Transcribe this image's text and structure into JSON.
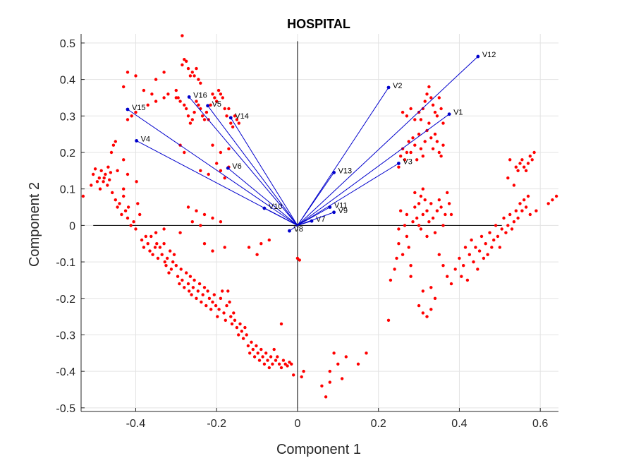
{
  "chart_data": {
    "type": "scatter",
    "title": "HOSPITAL",
    "xlabel": "Component 1",
    "ylabel": "Component 2",
    "xlim": [
      -0.535,
      0.645
    ],
    "ylim": [
      -0.51,
      0.525
    ],
    "xticks": [
      -0.4,
      -0.2,
      0,
      0.2,
      0.4,
      0.6
    ],
    "xtick_labels": [
      "-0.4",
      "-0.2",
      "0",
      "0.2",
      "0.4",
      "0.6"
    ],
    "yticks": [
      -0.5,
      -0.4,
      -0.3,
      -0.2,
      -0.1,
      0,
      0.1,
      0.2,
      0.3,
      0.4,
      0.5
    ],
    "ytick_labels": [
      "-0.5",
      "-0.4",
      "-0.3",
      "-0.2",
      "-0.1",
      "0",
      "0.1",
      "0.2",
      "0.3",
      "0.4",
      "0.5"
    ],
    "grid": true,
    "colors": {
      "points": "#ff0000",
      "vectors": "#0000cc",
      "axes_lines": "#000000",
      "grid": "#e3e3e3",
      "box": "#262626"
    },
    "vectors": [
      {
        "name": "V1",
        "x": 0.375,
        "y": 0.305
      },
      {
        "name": "V2",
        "x": 0.225,
        "y": 0.378
      },
      {
        "name": "V3",
        "x": 0.25,
        "y": 0.17
      },
      {
        "name": "V4",
        "x": -0.398,
        "y": 0.232
      },
      {
        "name": "V5",
        "x": -0.222,
        "y": 0.328
      },
      {
        "name": "V6",
        "x": -0.172,
        "y": 0.157
      },
      {
        "name": "V7",
        "x": 0.035,
        "y": 0.012
      },
      {
        "name": "V8",
        "x": -0.02,
        "y": -0.015
      },
      {
        "name": "V9",
        "x": 0.09,
        "y": 0.036
      },
      {
        "name": "V10",
        "x": -0.082,
        "y": 0.047
      },
      {
        "name": "V11",
        "x": 0.08,
        "y": 0.05
      },
      {
        "name": "V12",
        "x": 0.446,
        "y": 0.463
      },
      {
        "name": "V13",
        "x": 0.09,
        "y": 0.145
      },
      {
        "name": "V14",
        "x": -0.165,
        "y": 0.295
      },
      {
        "name": "V15",
        "x": -0.42,
        "y": 0.318
      },
      {
        "name": "V16",
        "x": -0.268,
        "y": 0.352
      }
    ],
    "points": [
      [
        -0.53,
        0.08
      ],
      [
        -0.51,
        0.11
      ],
      [
        -0.505,
        0.14
      ],
      [
        -0.5,
        0.155
      ],
      [
        -0.495,
        0.12
      ],
      [
        -0.49,
        0.13
      ],
      [
        -0.488,
        0.1
      ],
      [
        -0.485,
        0.15
      ],
      [
        -0.48,
        0.12
      ],
      [
        -0.478,
        0.13
      ],
      [
        -0.475,
        0.14
      ],
      [
        -0.47,
        0.11
      ],
      [
        -0.468,
        0.16
      ],
      [
        -0.465,
        0.125
      ],
      [
        -0.462,
        0.145
      ],
      [
        -0.46,
        0.2
      ],
      [
        -0.455,
        0.22
      ],
      [
        -0.45,
        0.23
      ],
      [
        -0.458,
        0.09
      ],
      [
        -0.45,
        0.07
      ],
      [
        -0.445,
        0.05
      ],
      [
        -0.44,
        0.06
      ],
      [
        -0.435,
        0.03
      ],
      [
        -0.43,
        0.08
      ],
      [
        -0.425,
        0.04
      ],
      [
        -0.42,
        0.02
      ],
      [
        -0.418,
        0.05
      ],
      [
        -0.412,
        0.0
      ],
      [
        -0.405,
        0.01
      ],
      [
        -0.4,
        -0.01
      ],
      [
        -0.398,
        0.12
      ],
      [
        -0.395,
        0.06
      ],
      [
        -0.39,
        0.03
      ],
      [
        -0.385,
        -0.04
      ],
      [
        -0.38,
        -0.06
      ],
      [
        -0.375,
        -0.03
      ],
      [
        -0.37,
        -0.05
      ],
      [
        -0.365,
        -0.07
      ],
      [
        -0.362,
        -0.03
      ],
      [
        -0.358,
        -0.08
      ],
      [
        -0.352,
        -0.06
      ],
      [
        -0.348,
        -0.05
      ],
      [
        -0.345,
        -0.09
      ],
      [
        -0.34,
        -0.06
      ],
      [
        -0.335,
        -0.08
      ],
      [
        -0.33,
        -0.05
      ],
      [
        -0.328,
        -0.1
      ],
      [
        -0.325,
        -0.11
      ],
      [
        -0.322,
        -0.09
      ],
      [
        -0.318,
        -0.13
      ],
      [
        -0.315,
        -0.07
      ],
      [
        -0.312,
        -0.12
      ],
      [
        -0.308,
        -0.1
      ],
      [
        -0.305,
        -0.08
      ],
      [
        -0.3,
        -0.11
      ],
      [
        -0.296,
        -0.14
      ],
      [
        -0.292,
        -0.16
      ],
      [
        -0.288,
        -0.12
      ],
      [
        -0.285,
        -0.15
      ],
      [
        -0.28,
        -0.17
      ],
      [
        -0.275,
        -0.13
      ],
      [
        -0.27,
        -0.16
      ],
      [
        -0.268,
        -0.18
      ],
      [
        -0.265,
        -0.14
      ],
      [
        -0.262,
        -0.19
      ],
      [
        -0.258,
        -0.17
      ],
      [
        -0.255,
        -0.15
      ],
      [
        -0.25,
        -0.2
      ],
      [
        -0.246,
        -0.18
      ],
      [
        -0.242,
        -0.16
      ],
      [
        -0.238,
        -0.21
      ],
      [
        -0.234,
        -0.19
      ],
      [
        -0.23,
        -0.17
      ],
      [
        -0.226,
        -0.22
      ],
      [
        -0.222,
        -0.18
      ],
      [
        -0.218,
        -0.2
      ],
      [
        -0.214,
        -0.23
      ],
      [
        -0.21,
        -0.21
      ],
      [
        -0.206,
        -0.19
      ],
      [
        -0.202,
        -0.22
      ],
      [
        -0.198,
        -0.25
      ],
      [
        -0.194,
        -0.23
      ],
      [
        -0.19,
        -0.2
      ],
      [
        -0.186,
        -0.18
      ],
      [
        -0.182,
        -0.24
      ],
      [
        -0.178,
        -0.26
      ],
      [
        -0.175,
        -0.22
      ],
      [
        -0.172,
        -0.18
      ],
      [
        -0.168,
        -0.21
      ],
      [
        -0.165,
        -0.25
      ],
      [
        -0.162,
        -0.27
      ],
      [
        -0.158,
        -0.24
      ],
      [
        -0.155,
        -0.26
      ],
      [
        -0.15,
        -0.28
      ],
      [
        -0.146,
        -0.3
      ],
      [
        -0.142,
        -0.27
      ],
      [
        -0.138,
        -0.29
      ],
      [
        -0.134,
        -0.31
      ],
      [
        -0.13,
        -0.28
      ],
      [
        -0.126,
        -0.3
      ],
      [
        -0.122,
        -0.33
      ],
      [
        -0.118,
        -0.35
      ],
      [
        -0.114,
        -0.32
      ],
      [
        -0.11,
        -0.34
      ],
      [
        -0.106,
        -0.36
      ],
      [
        -0.102,
        -0.33
      ],
      [
        -0.098,
        -0.35
      ],
      [
        -0.094,
        -0.37
      ],
      [
        -0.09,
        -0.34
      ],
      [
        -0.086,
        -0.36
      ],
      [
        -0.082,
        -0.38
      ],
      [
        -0.078,
        -0.35
      ],
      [
        -0.074,
        -0.37
      ],
      [
        -0.07,
        -0.39
      ],
      [
        -0.066,
        -0.36
      ],
      [
        -0.062,
        -0.38
      ],
      [
        -0.058,
        -0.34
      ],
      [
        -0.054,
        -0.37
      ],
      [
        -0.05,
        -0.36
      ],
      [
        -0.045,
        -0.38
      ],
      [
        -0.04,
        -0.39
      ],
      [
        -0.035,
        -0.37
      ],
      [
        -0.03,
        -0.38
      ],
      [
        -0.025,
        -0.385
      ],
      [
        -0.02,
        -0.375
      ],
      [
        -0.015,
        -0.38
      ],
      [
        -0.04,
        -0.27
      ],
      [
        -0.01,
        -0.41
      ],
      [
        0.01,
        -0.415
      ],
      [
        0.015,
        -0.4
      ],
      [
        0.0,
        -0.09
      ],
      [
        0.005,
        -0.095
      ],
      [
        -0.285,
        0.52
      ],
      [
        -0.28,
        0.455
      ],
      [
        -0.285,
        0.44
      ],
      [
        -0.275,
        0.45
      ],
      [
        -0.27,
        0.43
      ],
      [
        -0.265,
        0.41
      ],
      [
        -0.26,
        0.42
      ],
      [
        -0.255,
        0.41
      ],
      [
        -0.25,
        0.43
      ],
      [
        -0.245,
        0.4
      ],
      [
        -0.24,
        0.39
      ],
      [
        -0.3,
        0.37
      ],
      [
        -0.295,
        0.35
      ],
      [
        -0.29,
        0.34
      ],
      [
        -0.28,
        0.33
      ],
      [
        -0.275,
        0.32
      ],
      [
        -0.27,
        0.3
      ],
      [
        -0.265,
        0.28
      ],
      [
        -0.26,
        0.29
      ],
      [
        -0.255,
        0.31
      ],
      [
        -0.25,
        0.34
      ],
      [
        -0.245,
        0.33
      ],
      [
        -0.24,
        0.32
      ],
      [
        -0.235,
        0.3
      ],
      [
        -0.23,
        0.29
      ],
      [
        -0.225,
        0.31
      ],
      [
        -0.22,
        0.29
      ],
      [
        -0.215,
        0.33
      ],
      [
        -0.21,
        0.36
      ],
      [
        -0.205,
        0.35
      ],
      [
        -0.2,
        0.34
      ],
      [
        -0.195,
        0.37
      ],
      [
        -0.19,
        0.36
      ],
      [
        -0.185,
        0.35
      ],
      [
        -0.18,
        0.32
      ],
      [
        -0.175,
        0.3
      ],
      [
        -0.17,
        0.32
      ],
      [
        -0.165,
        0.28
      ],
      [
        -0.16,
        0.27
      ],
      [
        -0.155,
        0.3
      ],
      [
        -0.15,
        0.29
      ],
      [
        -0.145,
        0.28
      ],
      [
        -0.42,
        0.42
      ],
      [
        -0.4,
        0.41
      ],
      [
        -0.36,
        0.36
      ],
      [
        -0.35,
        0.34
      ],
      [
        -0.33,
        0.35
      ],
      [
        -0.32,
        0.36
      ],
      [
        -0.3,
        0.35
      ],
      [
        -0.35,
        0.4
      ],
      [
        -0.33,
        0.42
      ],
      [
        -0.43,
        0.38
      ],
      [
        -0.38,
        0.37
      ],
      [
        -0.42,
        0.29
      ],
      [
        -0.41,
        0.3
      ],
      [
        -0.4,
        0.31
      ],
      [
        -0.37,
        0.33
      ],
      [
        -0.29,
        0.22
      ],
      [
        -0.28,
        0.2
      ],
      [
        -0.21,
        0.22
      ],
      [
        -0.19,
        0.2
      ],
      [
        -0.17,
        0.21
      ],
      [
        -0.2,
        0.17
      ],
      [
        -0.17,
        0.16
      ],
      [
        -0.19,
        0.15
      ],
      [
        -0.18,
        0.13
      ],
      [
        -0.22,
        0.14
      ],
      [
        -0.24,
        0.15
      ],
      [
        -0.27,
        0.05
      ],
      [
        -0.25,
        0.04
      ],
      [
        -0.23,
        0.03
      ],
      [
        -0.21,
        0.02
      ],
      [
        -0.19,
        0.01
      ],
      [
        -0.23,
        -0.05
      ],
      [
        -0.21,
        -0.07
      ],
      [
        -0.18,
        -0.06
      ],
      [
        -0.24,
        0.0
      ],
      [
        -0.26,
        0.01
      ],
      [
        -0.29,
        -0.02
      ],
      [
        -0.33,
        -0.01
      ],
      [
        -0.35,
        -0.02
      ],
      [
        -0.12,
        -0.06
      ],
      [
        -0.1,
        -0.08
      ],
      [
        -0.09,
        -0.05
      ],
      [
        -0.07,
        -0.04
      ],
      [
        -0.42,
        0.14
      ],
      [
        -0.43,
        0.1
      ],
      [
        -0.445,
        0.15
      ],
      [
        -0.43,
        0.18
      ],
      [
        0.225,
        -0.26
      ],
      [
        0.23,
        -0.15
      ],
      [
        0.24,
        -0.12
      ],
      [
        0.245,
        -0.09
      ],
      [
        0.25,
        -0.05
      ],
      [
        0.25,
        -0.01
      ],
      [
        0.255,
        0.04
      ],
      [
        0.26,
        -0.08
      ],
      [
        0.265,
        0.0
      ],
      [
        0.27,
        -0.03
      ],
      [
        0.27,
        0.03
      ],
      [
        0.275,
        -0.06
      ],
      [
        0.28,
        -0.11
      ],
      [
        0.28,
        -0.14
      ],
      [
        0.285,
        0.01
      ],
      [
        0.29,
        0.05
      ],
      [
        0.29,
        0.09
      ],
      [
        0.295,
        0.02
      ],
      [
        0.3,
        0.0
      ],
      [
        0.3,
        0.06
      ],
      [
        0.305,
        0.08
      ],
      [
        0.305,
        -0.01
      ],
      [
        0.31,
        0.03
      ],
      [
        0.31,
        0.1
      ],
      [
        0.315,
        0.07
      ],
      [
        0.32,
        0.04
      ],
      [
        0.32,
        -0.03
      ],
      [
        0.325,
        0.01
      ],
      [
        0.33,
        0.06
      ],
      [
        0.335,
        0.02
      ],
      [
        0.34,
        -0.02
      ],
      [
        0.345,
        0.04
      ],
      [
        0.35,
        0.07
      ],
      [
        0.355,
        0.05
      ],
      [
        0.36,
        0.0
      ],
      [
        0.365,
        0.03
      ],
      [
        0.37,
        0.09
      ],
      [
        0.375,
        0.06
      ],
      [
        0.38,
        0.03
      ],
      [
        0.35,
        -0.08
      ],
      [
        0.36,
        -0.11
      ],
      [
        0.37,
        -0.14
      ],
      [
        0.38,
        -0.16
      ],
      [
        0.34,
        -0.2
      ],
      [
        0.33,
        -0.23
      ],
      [
        0.32,
        -0.25
      ],
      [
        0.31,
        -0.24
      ],
      [
        0.3,
        -0.22
      ],
      [
        0.31,
        -0.18
      ],
      [
        0.33,
        -0.17
      ],
      [
        0.25,
        0.16
      ],
      [
        0.255,
        0.19
      ],
      [
        0.26,
        0.21
      ],
      [
        0.265,
        0.18
      ],
      [
        0.27,
        0.2
      ],
      [
        0.275,
        0.23
      ],
      [
        0.28,
        0.2
      ],
      [
        0.285,
        0.24
      ],
      [
        0.29,
        0.22
      ],
      [
        0.295,
        0.18
      ],
      [
        0.3,
        0.25
      ],
      [
        0.305,
        0.21
      ],
      [
        0.31,
        0.19
      ],
      [
        0.315,
        0.23
      ],
      [
        0.32,
        0.26
      ],
      [
        0.325,
        0.28
      ],
      [
        0.33,
        0.24
      ],
      [
        0.335,
        0.21
      ],
      [
        0.34,
        0.25
      ],
      [
        0.345,
        0.23
      ],
      [
        0.35,
        0.2
      ],
      [
        0.355,
        0.19
      ],
      [
        0.36,
        0.22
      ],
      [
        0.3,
        0.31
      ],
      [
        0.305,
        0.29
      ],
      [
        0.31,
        0.32
      ],
      [
        0.315,
        0.34
      ],
      [
        0.32,
        0.36
      ],
      [
        0.325,
        0.38
      ],
      [
        0.33,
        0.35
      ],
      [
        0.335,
        0.33
      ],
      [
        0.34,
        0.31
      ],
      [
        0.345,
        0.3
      ],
      [
        0.35,
        0.35
      ],
      [
        0.355,
        0.32
      ],
      [
        0.36,
        0.28
      ],
      [
        0.27,
        0.3
      ],
      [
        0.28,
        0.32
      ],
      [
        0.26,
        0.31
      ],
      [
        0.29,
        0.29
      ],
      [
        0.39,
        -0.12
      ],
      [
        0.4,
        -0.09
      ],
      [
        0.405,
        -0.14
      ],
      [
        0.41,
        -0.11
      ],
      [
        0.415,
        -0.06
      ],
      [
        0.42,
        -0.15
      ],
      [
        0.425,
        -0.08
      ],
      [
        0.43,
        -0.04
      ],
      [
        0.435,
        -0.1
      ],
      [
        0.44,
        -0.06
      ],
      [
        0.445,
        -0.12
      ],
      [
        0.45,
        -0.07
      ],
      [
        0.455,
        -0.03
      ],
      [
        0.46,
        -0.09
      ],
      [
        0.465,
        -0.05
      ],
      [
        0.47,
        -0.08
      ],
      [
        0.475,
        -0.02
      ],
      [
        0.48,
        -0.06
      ],
      [
        0.485,
        -0.04
      ],
      [
        0.49,
        0.0
      ],
      [
        0.495,
        -0.03
      ],
      [
        0.5,
        -0.06
      ],
      [
        0.505,
        -0.01
      ],
      [
        0.51,
        0.02
      ],
      [
        0.515,
        -0.02
      ],
      [
        0.52,
        0.0
      ],
      [
        0.525,
        0.03
      ],
      [
        0.53,
        -0.01
      ],
      [
        0.535,
        0.01
      ],
      [
        0.54,
        0.04
      ],
      [
        0.545,
        0.02
      ],
      [
        0.55,
        0.06
      ],
      [
        0.555,
        0.04
      ],
      [
        0.56,
        0.07
      ],
      [
        0.565,
        0.05
      ],
      [
        0.57,
        0.08
      ],
      [
        0.575,
        0.03
      ],
      [
        0.59,
        0.04
      ],
      [
        0.62,
        0.06
      ],
      [
        0.63,
        0.07
      ],
      [
        0.64,
        0.08
      ],
      [
        0.52,
        0.13
      ],
      [
        0.525,
        0.18
      ],
      [
        0.535,
        0.11
      ],
      [
        0.54,
        0.16
      ],
      [
        0.545,
        0.15
      ],
      [
        0.55,
        0.17
      ],
      [
        0.555,
        0.18
      ],
      [
        0.56,
        0.16
      ],
      [
        0.565,
        0.15
      ],
      [
        0.57,
        0.17
      ],
      [
        0.575,
        0.19
      ],
      [
        0.58,
        0.18
      ],
      [
        0.585,
        0.2
      ],
      [
        0.08,
        -0.4
      ],
      [
        0.09,
        -0.35
      ],
      [
        0.1,
        -0.38
      ],
      [
        0.11,
        -0.42
      ],
      [
        0.12,
        -0.36
      ],
      [
        0.15,
        -0.38
      ],
      [
        0.17,
        -0.35
      ],
      [
        0.07,
        -0.47
      ],
      [
        0.08,
        -0.43
      ],
      [
        0.06,
        -0.44
      ]
    ]
  }
}
